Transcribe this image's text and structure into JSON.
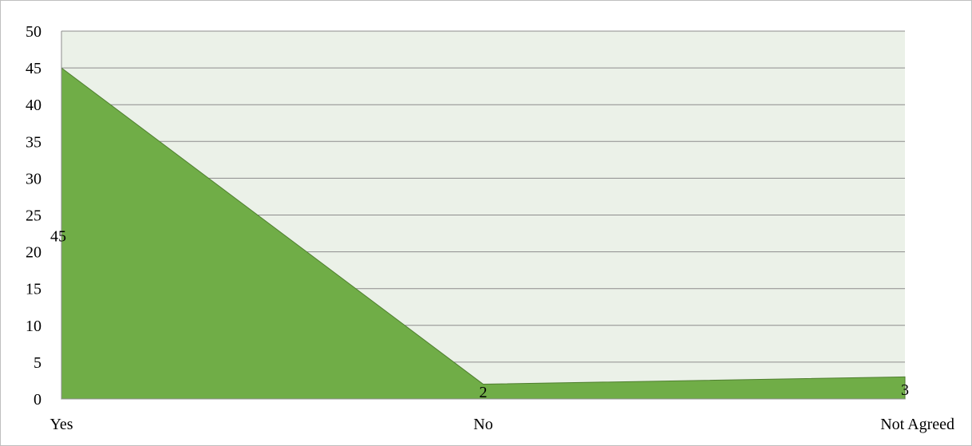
{
  "chart_data": {
    "type": "area",
    "categories": [
      "Yes",
      "No",
      "Not Agreed"
    ],
    "values": [
      45,
      2,
      3
    ],
    "data_labels": [
      "45",
      "2",
      "3"
    ],
    "ylim": [
      0,
      50
    ],
    "yticks": [
      0,
      5,
      10,
      15,
      20,
      25,
      30,
      35,
      40,
      45,
      50
    ],
    "grid": true,
    "legend": "none",
    "colors": {
      "area_fill": "#70ad47",
      "area_stroke": "#4f7f2f",
      "plot_background": "#ebf1e8",
      "gridline": "#8c8c8c",
      "frame": "#bfbfbf"
    }
  }
}
